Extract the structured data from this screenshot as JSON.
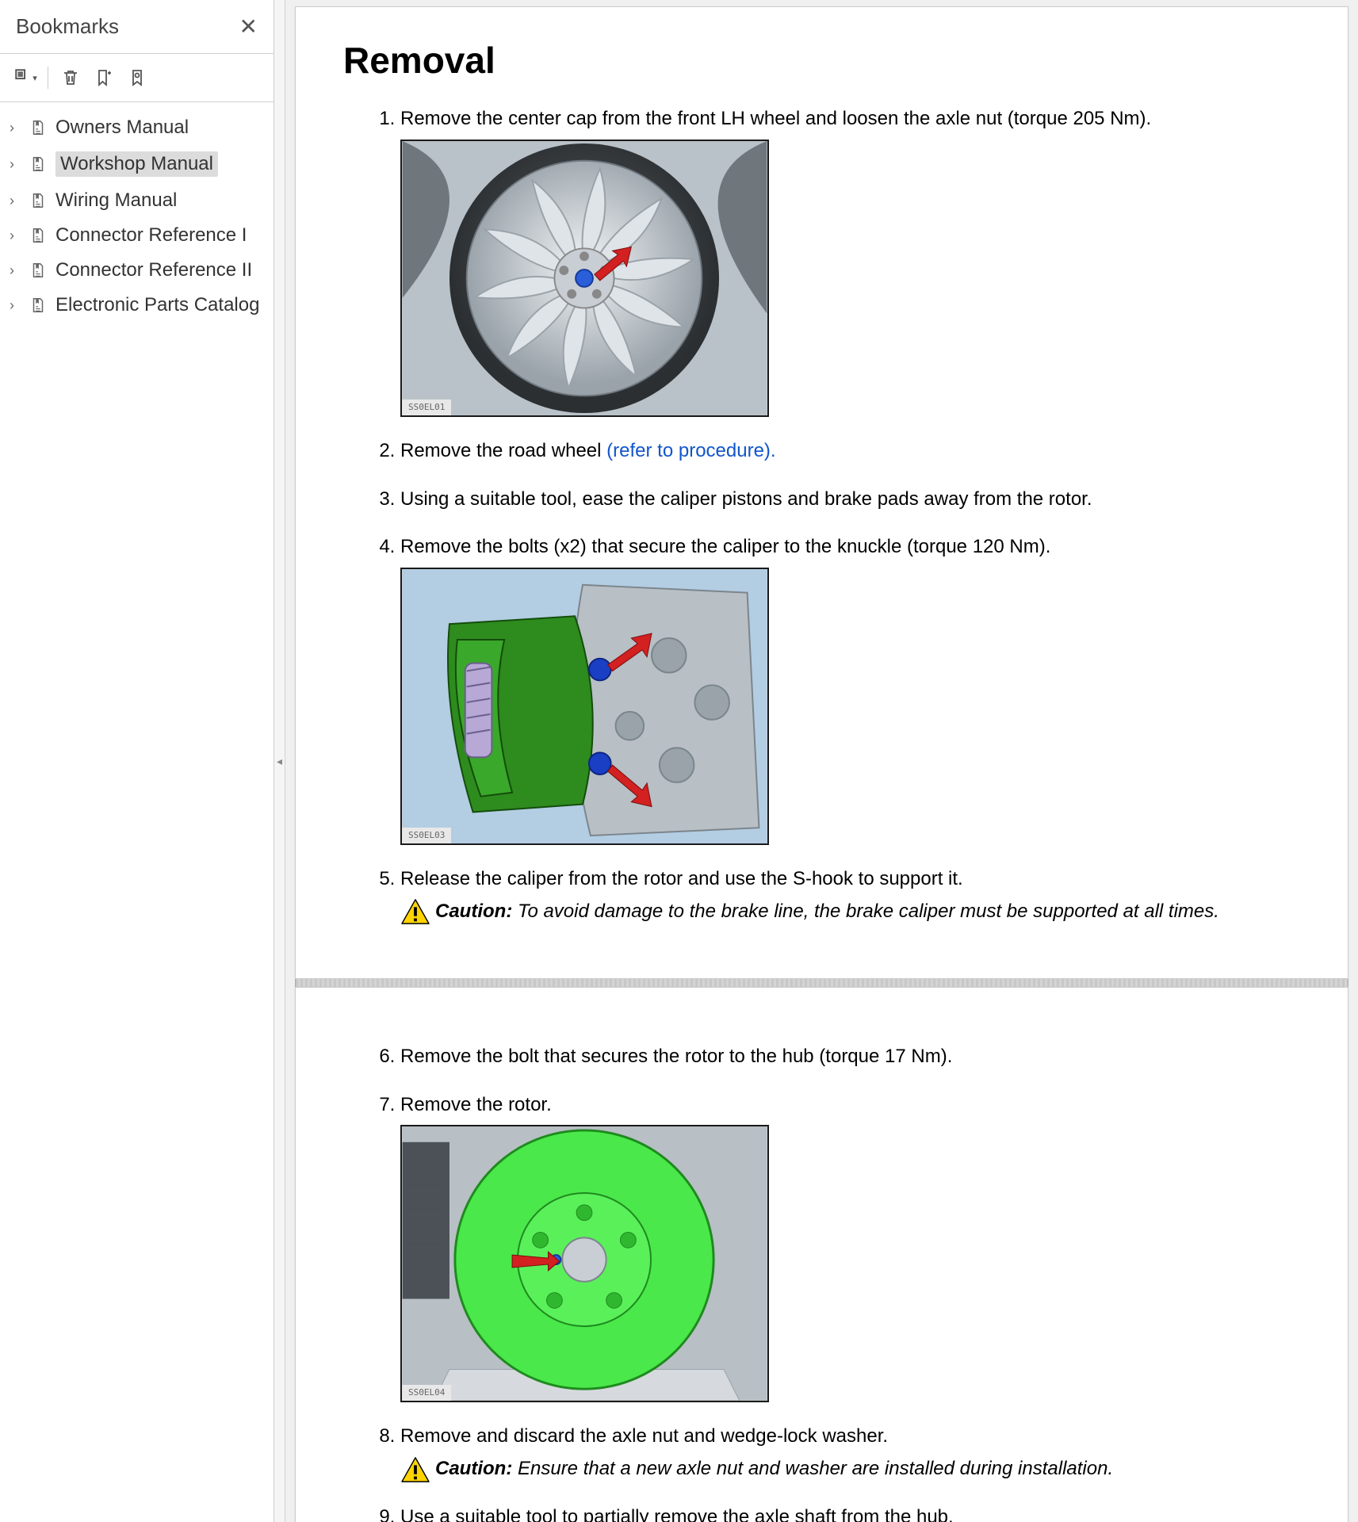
{
  "sidebar": {
    "title": "Bookmarks",
    "items": [
      {
        "label": "Owners Manual",
        "active": false
      },
      {
        "label": "Workshop Manual",
        "active": true
      },
      {
        "label": "Wiring Manual",
        "active": false
      },
      {
        "label": "Connector Reference I",
        "active": false
      },
      {
        "label": "Connector Reference II",
        "active": false
      },
      {
        "label": "Electronic Parts Catalog",
        "active": false
      }
    ]
  },
  "document": {
    "heading": "Removal",
    "steps_page1": [
      {
        "n": 1,
        "text": "Remove the center cap from the front LH wheel and loosen the axle nut (torque 205 Nm).",
        "figure": "wheel",
        "figure_tag": "SS0EL01"
      },
      {
        "n": 2,
        "text": "Remove the road wheel ",
        "link": "(refer to procedure)."
      },
      {
        "n": 3,
        "text": "Using a suitable tool, ease the caliper pistons and brake pads away from the rotor."
      },
      {
        "n": 4,
        "text": "Remove the bolts (x2) that secure the caliper to the knuckle (torque 120 Nm).",
        "figure": "caliper",
        "figure_tag": "SS0EL03"
      },
      {
        "n": 5,
        "text": "Release the caliper from the rotor and use the S-hook to support it.",
        "caution_label": "Caution:",
        "caution": "To avoid damage to the brake line, the brake caliper must be supported at all times."
      }
    ],
    "steps_page2": [
      {
        "n": 6,
        "text": "Remove the bolt that secures the rotor to the hub (torque 17 Nm)."
      },
      {
        "n": 7,
        "text": "Remove the rotor.",
        "figure": "rotor",
        "figure_tag": "SS0EL04"
      },
      {
        "n": 8,
        "text": "Remove and discard the axle nut and wedge-lock washer.",
        "caution_label": "Caution:",
        "caution": "Ensure that a new axle nut and washer are installed during installation."
      },
      {
        "n": 9,
        "text": "Use a suitable tool to partially remove the axle shaft from the hub."
      }
    ]
  },
  "colors": {
    "warn_fill": "#ffd400",
    "warn_stroke": "#000000",
    "link": "#1155cc",
    "caliper_green": "#2e8b1e",
    "rotor_green": "#4ae84a",
    "arrow_red": "#d32020",
    "bolt_blue": "#1a3fc4",
    "metal_light": "#c5ccd1",
    "metal_dark": "#7b858c"
  }
}
